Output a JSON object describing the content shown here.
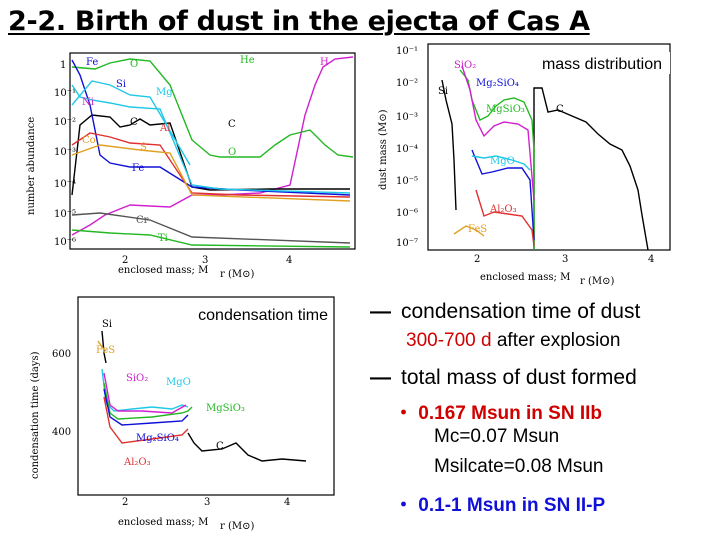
{
  "title": "2-2. Birth of dust in the ejecta of Cas A",
  "fig1": {
    "ylabel": "number abundance",
    "xlabel": "enclosed mass; M",
    "xlabel_unit": "r (M⊙)",
    "yticks": [
      "1",
      "10⁻¹",
      "10⁻²",
      "10⁻³",
      "10⁻⁴",
      "10⁻⁵",
      "10⁻⁶"
    ],
    "xticks": [
      "2",
      "3",
      "4"
    ],
    "labels": [
      "Fe",
      "O",
      "He",
      "H",
      "Si",
      "Mg",
      "Ni",
      "C",
      "Al",
      "Co",
      "S",
      "C",
      "O",
      "Fe",
      "Cr",
      "Ti"
    ]
  },
  "fig2": {
    "caption": "mass distribution",
    "ylabel": "dust mass (M⊙)",
    "xlabel": "enclosed mass; M",
    "xlabel_unit": "r (M⊙)",
    "yticks": [
      "10⁻¹",
      "10⁻²",
      "10⁻³",
      "10⁻⁴",
      "10⁻⁵",
      "10⁻⁶",
      "10⁻⁷"
    ],
    "xticks": [
      "2",
      "3",
      "4"
    ],
    "labels": [
      "SiO₂",
      "Si",
      "Mg₂SiO₄",
      "MgSiO₃",
      "C",
      "MgO",
      "Al₂O₃",
      "FeS"
    ]
  },
  "fig3": {
    "caption": "condensation time",
    "ylabel": "condensation time (days)",
    "xlabel": "enclosed mass; M",
    "xlabel_unit": "r (M⊙)",
    "yticks": [
      "600",
      "400"
    ],
    "xticks": [
      "2",
      "3",
      "4"
    ],
    "labels": [
      "Si",
      "FeS",
      "SiO₂",
      "MgO",
      "MgSiO₃",
      "Mg₂SiO₄",
      "Al₂O₃",
      "C"
    ]
  },
  "bullets": {
    "b1": "condensation time of dust",
    "b1_sub_red": "300-700 d",
    "b1_sub": "after explosion",
    "b2": "total mass of dust formed",
    "b2_l1_red": "0.167 Msun in SN IIb",
    "b2_l2": "Mc=0.07 Msun",
    "b2_l3": "Msilcate=0.08 Msun",
    "b3_blue": "0.1-1 Msun in SN II-P",
    "dash": "—",
    "dot": "・"
  },
  "colors": {
    "red": "#d00000",
    "blue": "#1010d8",
    "green": "#22b822",
    "magenta": "#d020d0",
    "cyan": "#20c8e8",
    "black": "#000000"
  }
}
